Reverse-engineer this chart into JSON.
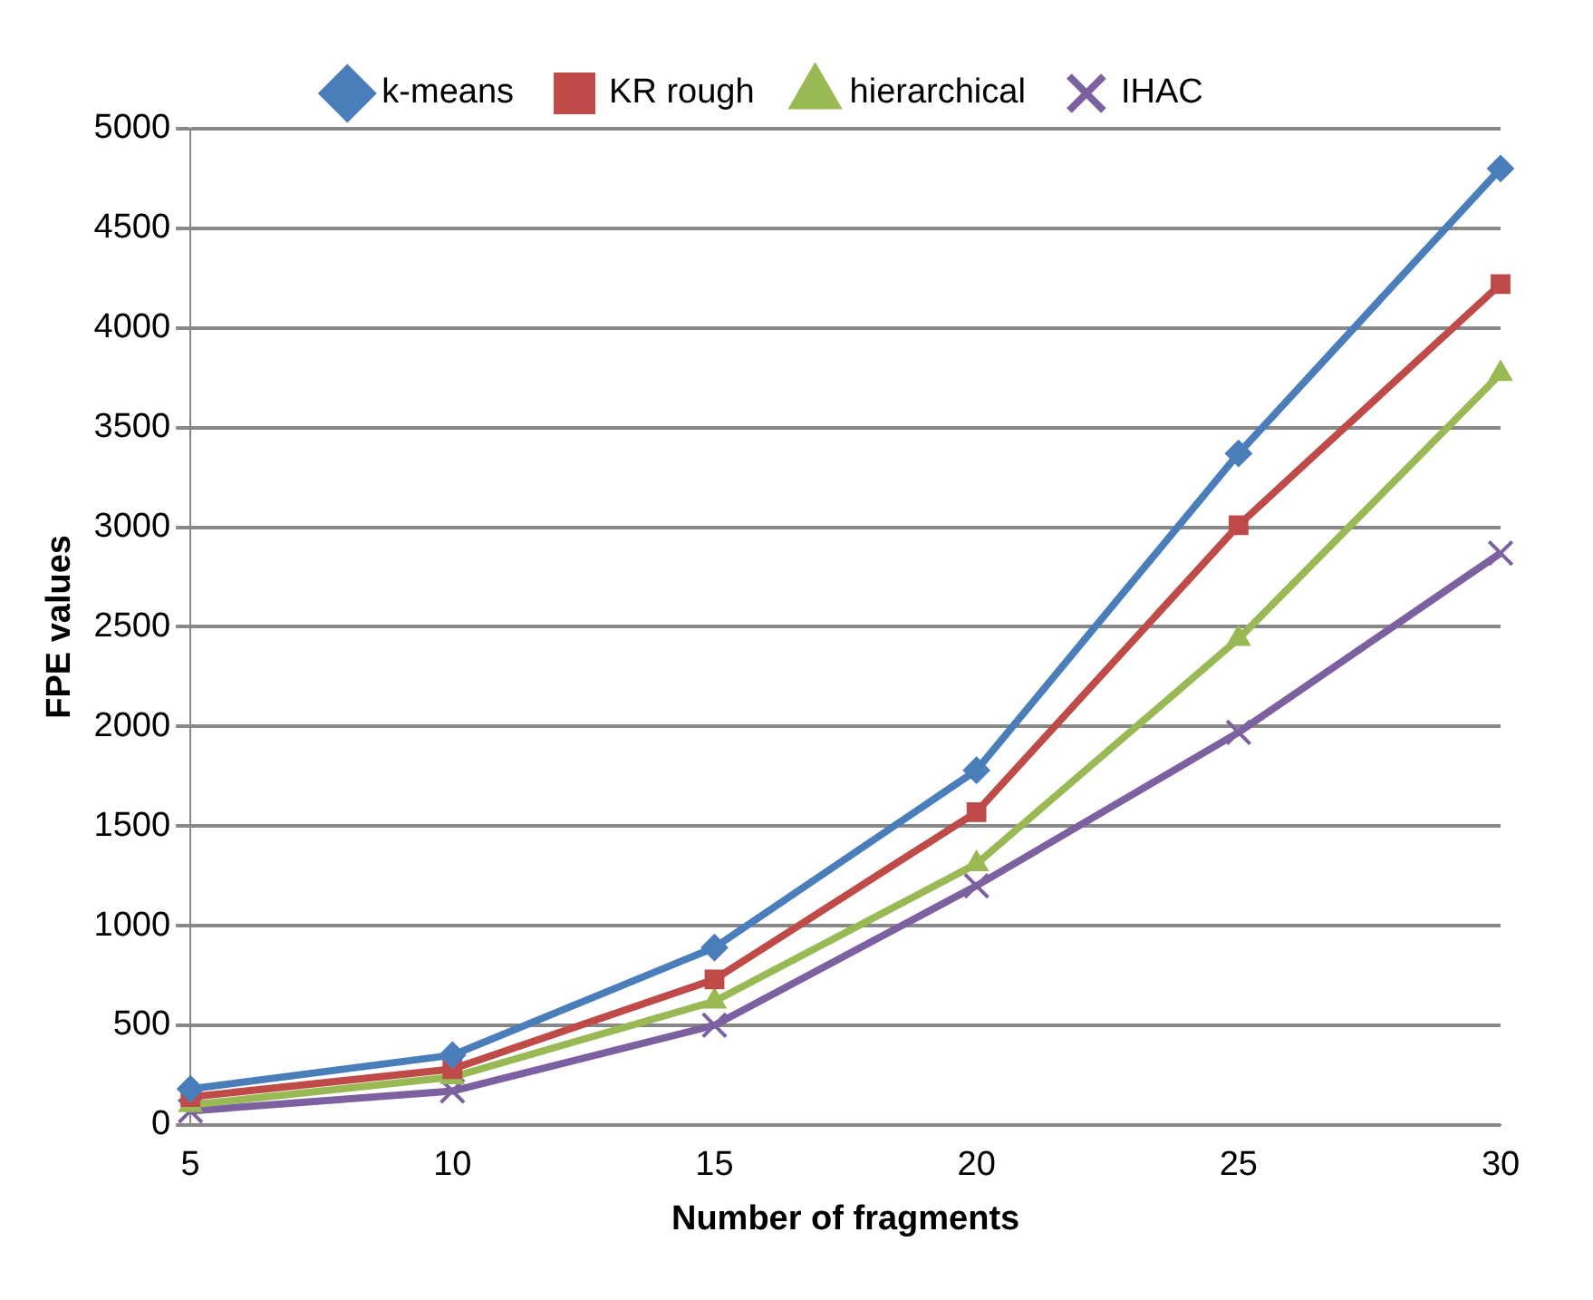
{
  "chart_data": {
    "type": "line",
    "xlabel": "Number of fragments",
    "ylabel": "FPE values",
    "categories": [
      "5",
      "10",
      "15",
      "20",
      "25",
      "30"
    ],
    "series": [
      {
        "name": "k-means",
        "color": "#4a7ebb",
        "marker": "diamond",
        "values": [
          180,
          350,
          890,
          1780,
          3370,
          4800
        ]
      },
      {
        "name": "KR rough",
        "color": "#be4b48",
        "marker": "square",
        "values": [
          140,
          280,
          730,
          1570,
          3010,
          4220
        ]
      },
      {
        "name": "hierarchical",
        "color": "#98b954",
        "marker": "triangle",
        "values": [
          100,
          240,
          620,
          1310,
          2440,
          3770
        ]
      },
      {
        "name": "IHAC",
        "color": "#7d60a0",
        "marker": "cross",
        "values": [
          70,
          170,
          500,
          1200,
          1970,
          2870
        ]
      }
    ],
    "ylim": [
      0,
      5000
    ],
    "yticks": [
      0,
      500,
      1000,
      1500,
      2000,
      2500,
      3000,
      3500,
      4000,
      4500,
      5000
    ],
    "grid": "y",
    "legend": "top",
    "line_style": "solid"
  }
}
